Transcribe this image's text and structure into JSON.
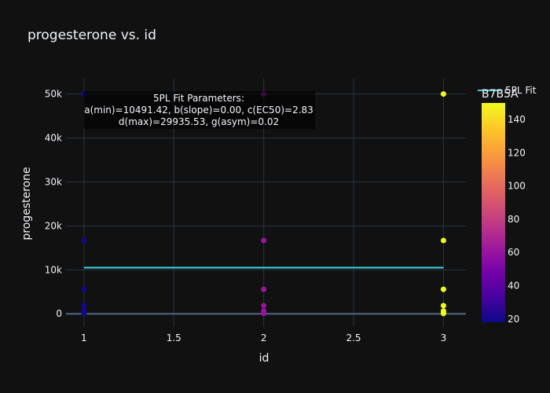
{
  "chart_data": {
    "type": "scatter",
    "title": "progesterone vs. id",
    "xlabel": "id",
    "ylabel": "progesterone",
    "xlim": [
      0.9,
      3.125
    ],
    "ylim": [
      -3000,
      53500
    ],
    "grid": true,
    "x_ticks": [
      1,
      1.5,
      2,
      2.5,
      3
    ],
    "x_tick_labels": [
      "1",
      "1.5",
      "2",
      "2.5",
      "3"
    ],
    "y_ticks": [
      0,
      10000,
      20000,
      30000,
      40000,
      50000
    ],
    "y_tick_labels": [
      "0",
      "10k",
      "20k",
      "30k",
      "40k",
      "50k"
    ],
    "colorbar": {
      "title": "B7B5A",
      "range": [
        18,
        150
      ],
      "ticks": [
        20,
        40,
        60,
        80,
        100,
        120,
        140
      ],
      "tick_labels": [
        "20",
        "40",
        "60",
        "80",
        "100",
        "120",
        "140"
      ],
      "colorscale": [
        "#0d0887",
        "#46039f",
        "#7201a8",
        "#9c179e",
        "#bd3786",
        "#d8576b",
        "#ed7953",
        "#fb9f3a",
        "#fdca26",
        "#f0f921"
      ]
    },
    "series": [
      {
        "kind": "markers",
        "points": [
          {
            "x": 1,
            "y": 50000,
            "c": 20
          },
          {
            "x": 1,
            "y": 16667,
            "c": 20
          },
          {
            "x": 1,
            "y": 5556,
            "c": 20
          },
          {
            "x": 1,
            "y": 1852,
            "c": 20
          },
          {
            "x": 1,
            "y": 617,
            "c": 20
          },
          {
            "x": 1,
            "y": 206,
            "c": 20
          },
          {
            "x": 1,
            "y": 69,
            "c": 20
          },
          {
            "x": 2,
            "y": 50000,
            "c": 60
          },
          {
            "x": 2,
            "y": 16667,
            "c": 60
          },
          {
            "x": 2,
            "y": 5556,
            "c": 60
          },
          {
            "x": 2,
            "y": 1852,
            "c": 60
          },
          {
            "x": 2,
            "y": 617,
            "c": 60
          },
          {
            "x": 2,
            "y": 206,
            "c": 60
          },
          {
            "x": 2,
            "y": 69,
            "c": 60
          },
          {
            "x": 3,
            "y": 50000,
            "c": 150
          },
          {
            "x": 3,
            "y": 16667,
            "c": 150
          },
          {
            "x": 3,
            "y": 5556,
            "c": 150
          },
          {
            "x": 3,
            "y": 1852,
            "c": 150
          },
          {
            "x": 3,
            "y": 617,
            "c": 150
          },
          {
            "x": 3,
            "y": 206,
            "c": 150
          },
          {
            "x": 3,
            "y": 69,
            "c": 150
          }
        ]
      },
      {
        "name": "5PL Fit",
        "kind": "line",
        "color": "#3dd6e0",
        "x": [
          1,
          3
        ],
        "y": [
          10491.42,
          10491.42
        ]
      }
    ],
    "annotation": {
      "lines": [
        "5PL Fit Parameters:",
        "a(min)=10491.42, b(slope)=0.00, c(EC50)=2.83",
        "d(max)=29935.53, g(asym)=0.02"
      ]
    },
    "legend": {
      "position": "top-right",
      "entries": [
        "5PL Fit"
      ]
    }
  }
}
